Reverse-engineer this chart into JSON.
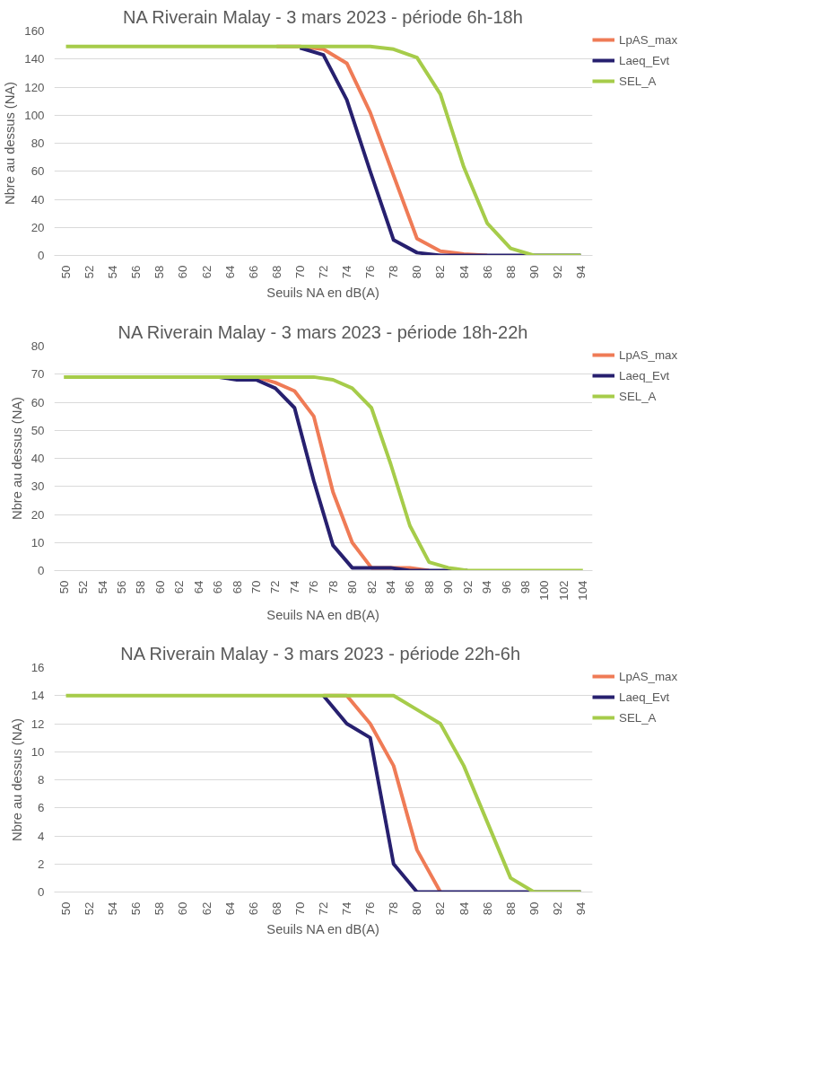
{
  "chart_data": [
    {
      "type": "line",
      "title": "NA Riverain Malay - 3 mars 2023 - période 6h-18h",
      "xlabel": "Seuils NA en dB(A)",
      "ylabel": "Nbre au dessus (NA)",
      "categories": [
        "50",
        "52",
        "54",
        "56",
        "58",
        "60",
        "62",
        "64",
        "66",
        "68",
        "70",
        "72",
        "74",
        "76",
        "78",
        "80",
        "82",
        "84",
        "86",
        "88",
        "90",
        "92",
        "94"
      ],
      "series": [
        {
          "name": "LpAS_max",
          "color": "#ef7b56",
          "values": [
            null,
            null,
            null,
            null,
            null,
            null,
            null,
            null,
            null,
            149,
            149,
            147,
            137,
            102,
            57,
            12,
            3,
            1,
            0,
            null,
            null,
            null,
            null
          ]
        },
        {
          "name": "Laeq_Evt",
          "color": "#27206f",
          "values": [
            null,
            null,
            null,
            null,
            null,
            null,
            null,
            null,
            null,
            null,
            148,
            143,
            111,
            60,
            11,
            2,
            0,
            0,
            0,
            0,
            0,
            0,
            0
          ]
        },
        {
          "name": "SEL_A",
          "color": "#a6cc4a",
          "values": [
            149,
            149,
            149,
            149,
            149,
            149,
            149,
            149,
            149,
            149,
            149,
            149,
            149,
            149,
            147,
            141,
            115,
            63,
            23,
            5,
            0,
            0,
            0
          ]
        }
      ],
      "ylim": [
        0,
        160
      ],
      "yticks": [
        0,
        20,
        40,
        60,
        80,
        100,
        120,
        140,
        160
      ],
      "grid": "y",
      "legend": "right"
    },
    {
      "type": "line",
      "title": "NA Riverain Malay - 3 mars 2023 - période 18h-22h",
      "xlabel": "Seuils NA en dB(A)",
      "ylabel": "Nbre au dessus (NA)",
      "categories": [
        "50",
        "52",
        "54",
        "56",
        "58",
        "60",
        "62",
        "64",
        "66",
        "68",
        "70",
        "72",
        "74",
        "76",
        "78",
        "80",
        "82",
        "84",
        "86",
        "88",
        "90",
        "92",
        "94",
        "96",
        "98",
        "100",
        "102",
        "104"
      ],
      "series": [
        {
          "name": "LpAS_max",
          "color": "#ef7b56",
          "values": [
            null,
            null,
            null,
            null,
            null,
            null,
            null,
            null,
            null,
            69,
            69,
            67,
            64,
            55,
            28,
            10,
            1,
            1,
            1,
            0,
            null,
            null,
            null,
            null,
            null,
            null,
            null,
            null
          ]
        },
        {
          "name": "Laeq_Evt",
          "color": "#27206f",
          "values": [
            null,
            null,
            null,
            null,
            null,
            null,
            null,
            null,
            69,
            68,
            68,
            65,
            58,
            32,
            9,
            1,
            1,
            1,
            0,
            0,
            0,
            0,
            null,
            null,
            null,
            null,
            null,
            null
          ]
        },
        {
          "name": "SEL_A",
          "color": "#a6cc4a",
          "values": [
            69,
            69,
            69,
            69,
            69,
            69,
            69,
            69,
            69,
            69,
            69,
            69,
            69,
            69,
            68,
            65,
            58,
            38,
            16,
            3,
            1,
            0,
            0,
            0,
            0,
            0,
            0,
            0
          ]
        }
      ],
      "ylim": [
        0,
        80
      ],
      "yticks": [
        0,
        10,
        20,
        30,
        40,
        50,
        60,
        70,
        80
      ],
      "grid": "y",
      "legend": "right"
    },
    {
      "type": "line",
      "title": "NA Riverain Malay  - 3 mars 2023 - période 22h-6h",
      "xlabel": "Seuils NA en dB(A)",
      "ylabel": "Nbre au dessus (NA)",
      "categories": [
        "50",
        "52",
        "54",
        "56",
        "58",
        "60",
        "62",
        "64",
        "66",
        "68",
        "70",
        "72",
        "74",
        "76",
        "78",
        "80",
        "82",
        "84",
        "86",
        "88",
        "90",
        "92",
        "94"
      ],
      "series": [
        {
          "name": "LpAS_max",
          "color": "#ef7b56",
          "values": [
            null,
            null,
            null,
            null,
            null,
            null,
            null,
            null,
            null,
            null,
            null,
            14,
            14,
            12,
            9,
            3,
            0,
            null,
            null,
            null,
            null,
            null,
            null
          ]
        },
        {
          "name": "Laeq_Evt",
          "color": "#27206f",
          "values": [
            null,
            null,
            null,
            null,
            null,
            null,
            null,
            null,
            null,
            null,
            null,
            14,
            12,
            11,
            2,
            0,
            0,
            0,
            0,
            0,
            0,
            0,
            0
          ]
        },
        {
          "name": "SEL_A",
          "color": "#a6cc4a",
          "values": [
            14,
            14,
            14,
            14,
            14,
            14,
            14,
            14,
            14,
            14,
            14,
            14,
            14,
            14,
            14,
            13,
            12,
            9,
            5,
            1,
            0,
            0,
            0
          ]
        }
      ],
      "ylim": [
        0,
        16
      ],
      "yticks": [
        0,
        2,
        4,
        6,
        8,
        10,
        12,
        14,
        16
      ],
      "grid": "y",
      "legend": "right"
    }
  ]
}
